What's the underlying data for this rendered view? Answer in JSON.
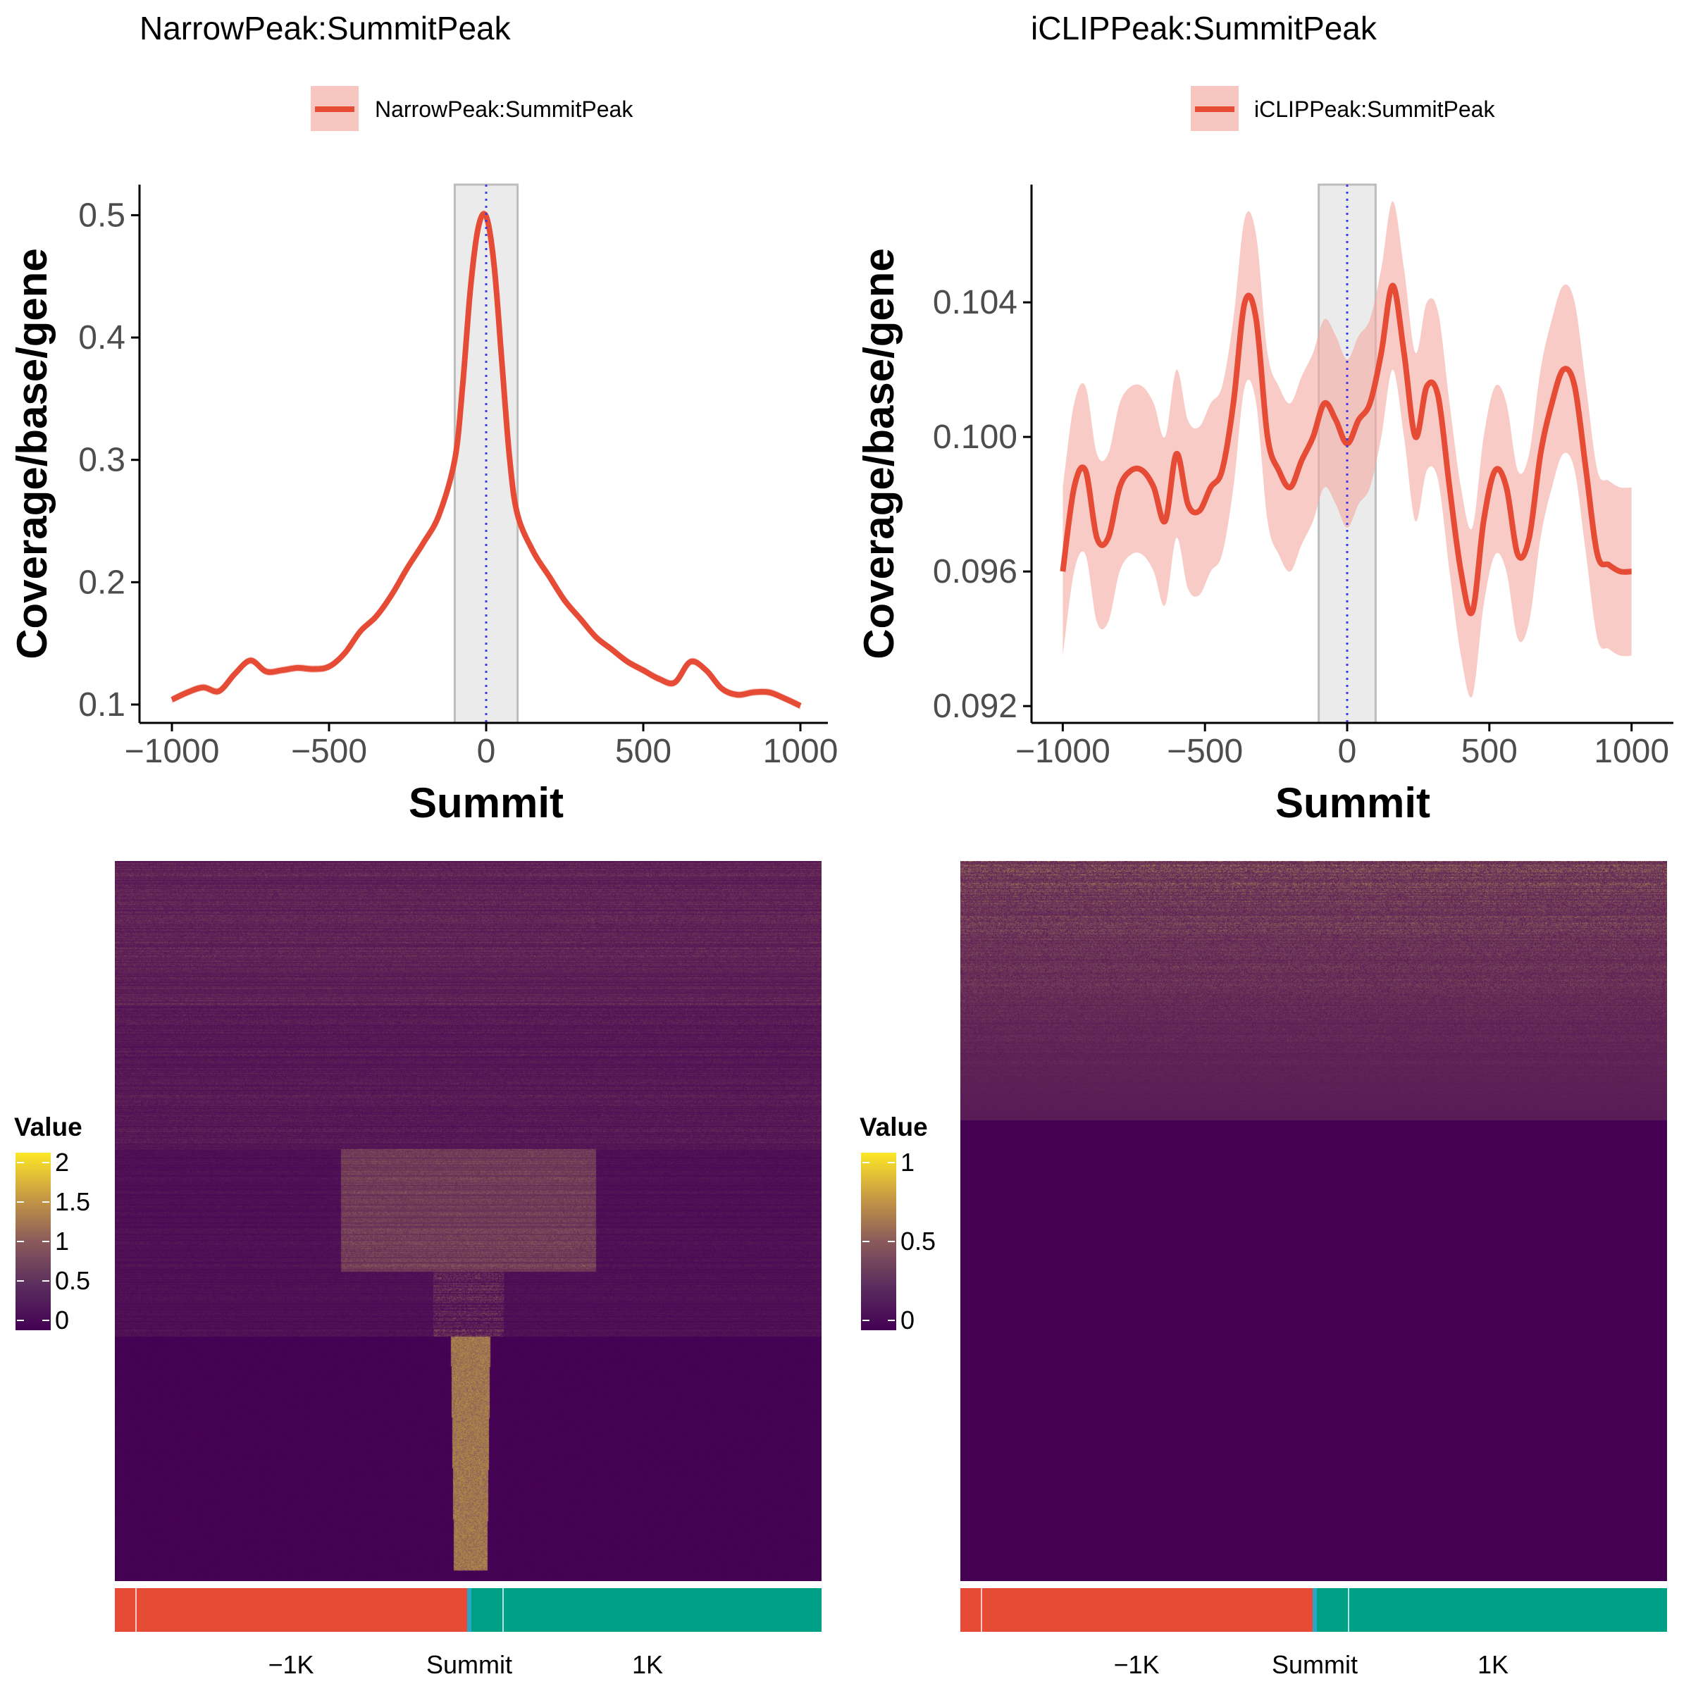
{
  "colors": {
    "line": "#E64B35",
    "ribbon": "#F4A9A0",
    "summit_line": "#3A3AE6",
    "window_fill": "#EBEBEB",
    "window_stroke": "#BDBDBD",
    "bar_upstream": "#E64B35",
    "bar_downstream": "#00A087",
    "bar_center": "#2CA4C8",
    "heat_low": "#440154",
    "heat_mid": "#8A5A5A",
    "heat_high": "#FDE725"
  },
  "panels": [
    {
      "title": "NarrowPeak:SummitPeak",
      "legend_label": "NarrowPeak:SummitPeak",
      "ylabel": "Coverage/base/gene",
      "xlabel": "Summit",
      "xticks": [
        "−1000",
        "−500",
        "0",
        "500",
        "1000"
      ],
      "yticks": [
        "0.1",
        "0.2",
        "0.3",
        "0.4",
        "0.5"
      ],
      "heatmap_legend_title": "Value",
      "heatmap_legend_ticks": [
        "2",
        "1.5",
        "1",
        "0.5",
        "0"
      ],
      "bar_labels": [
        "−1K",
        "Summit",
        "1K"
      ]
    },
    {
      "title": "iCLIPPeak:SummitPeak",
      "legend_label": "iCLIPPeak:SummitPeak",
      "ylabel": "Coverage/base/gene",
      "xlabel": "Summit",
      "xticks": [
        "−1000",
        "−500",
        "0",
        "500",
        "1000"
      ],
      "yticks": [
        "0.092",
        "0.096",
        "0.100",
        "0.104"
      ],
      "heatmap_legend_title": "Value",
      "heatmap_legend_ticks": [
        "1",
        "0.5",
        "0"
      ],
      "bar_labels": [
        "−1K",
        "Summit",
        "1K"
      ]
    }
  ],
  "chart_data": [
    {
      "type": "line",
      "title": "NarrowPeak:SummitPeak",
      "xlabel": "Summit",
      "ylabel": "Coverage/base/gene",
      "xlim": [
        -1000,
        1000
      ],
      "ylim": [
        0.085,
        0.525
      ],
      "highlight_window": [
        -100,
        100
      ],
      "series": [
        {
          "name": "NarrowPeak:SummitPeak",
          "x": [
            -1000,
            -950,
            -900,
            -850,
            -800,
            -750,
            -700,
            -650,
            -600,
            -550,
            -500,
            -450,
            -400,
            -350,
            -300,
            -250,
            -200,
            -150,
            -100,
            -75,
            -50,
            -25,
            0,
            25,
            50,
            75,
            100,
            150,
            200,
            250,
            300,
            350,
            400,
            450,
            500,
            550,
            600,
            650,
            700,
            750,
            800,
            850,
            900,
            950,
            1000
          ],
          "y": [
            0.104,
            0.11,
            0.114,
            0.111,
            0.125,
            0.136,
            0.127,
            0.128,
            0.13,
            0.129,
            0.131,
            0.142,
            0.16,
            0.172,
            0.19,
            0.212,
            0.232,
            0.255,
            0.3,
            0.36,
            0.44,
            0.49,
            0.499,
            0.46,
            0.38,
            0.3,
            0.255,
            0.225,
            0.205,
            0.185,
            0.17,
            0.155,
            0.145,
            0.135,
            0.128,
            0.121,
            0.118,
            0.135,
            0.128,
            0.113,
            0.108,
            0.11,
            0.11,
            0.105,
            0.099
          ],
          "band": 0.003
        }
      ]
    },
    {
      "type": "line",
      "title": "iCLIPPeak:SummitPeak",
      "xlabel": "Summit",
      "ylabel": "Coverage/base/gene",
      "xlim": [
        -1100,
        1100
      ],
      "ylim": [
        0.0915,
        0.1075
      ],
      "highlight_window": [
        -100,
        100
      ],
      "series": [
        {
          "name": "iCLIPPeak:SummitPeak",
          "x": [
            -1000,
            -960,
            -920,
            -880,
            -840,
            -800,
            -760,
            -720,
            -680,
            -640,
            -600,
            -560,
            -520,
            -480,
            -440,
            -400,
            -360,
            -320,
            -280,
            -240,
            -200,
            -160,
            -120,
            -80,
            -40,
            0,
            40,
            80,
            120,
            160,
            200,
            240,
            280,
            320,
            360,
            400,
            440,
            480,
            520,
            560,
            600,
            640,
            680,
            720,
            760,
            800,
            840,
            880,
            920,
            960,
            1000
          ],
          "y": [
            0.096,
            0.0985,
            0.099,
            0.097,
            0.097,
            0.0985,
            0.099,
            0.099,
            0.0985,
            0.0975,
            0.0995,
            0.098,
            0.0978,
            0.0985,
            0.099,
            0.101,
            0.104,
            0.1035,
            0.1,
            0.099,
            0.0985,
            0.0993,
            0.1,
            0.101,
            0.1005,
            0.0998,
            0.1005,
            0.101,
            0.1025,
            0.1045,
            0.1025,
            0.1,
            0.1015,
            0.1012,
            0.0985,
            0.096,
            0.0948,
            0.0975,
            0.099,
            0.0985,
            0.0965,
            0.097,
            0.0995,
            0.101,
            0.102,
            0.1015,
            0.099,
            0.0965,
            0.0962,
            0.096,
            0.096
          ],
          "band": 0.0025
        }
      ]
    },
    {
      "type": "heatmap",
      "title": "",
      "legend_title": "Value",
      "range": [
        0,
        2
      ],
      "x_labels": [
        "−1K",
        "Summit",
        "1K"
      ]
    },
    {
      "type": "heatmap",
      "title": "",
      "legend_title": "Value",
      "range": [
        0,
        1
      ],
      "x_labels": [
        "−1K",
        "Summit",
        "1K"
      ]
    }
  ]
}
